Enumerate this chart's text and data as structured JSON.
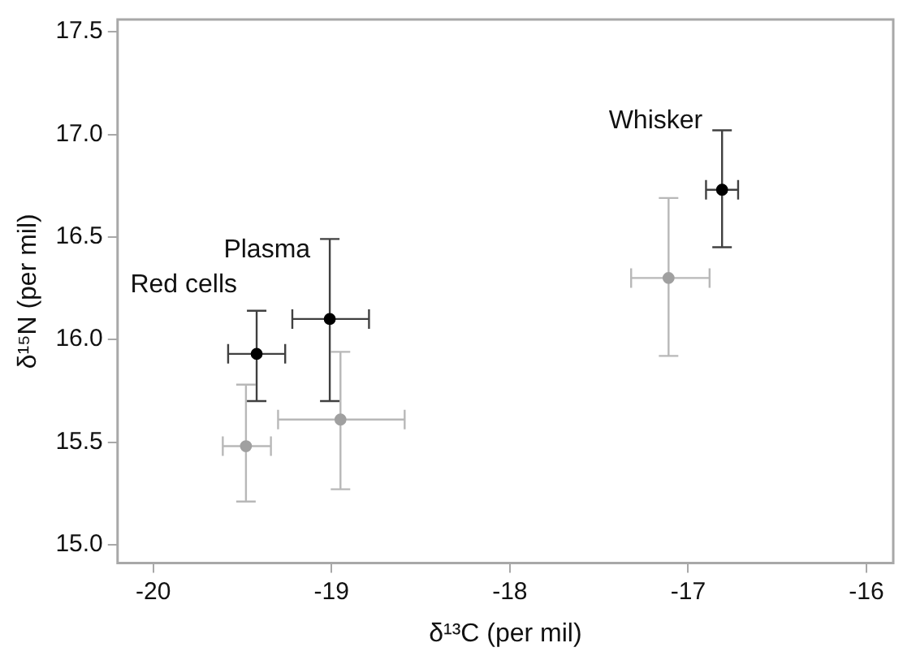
{
  "chart_data": {
    "type": "scatter",
    "xlabel": "δ¹³C (per mil)",
    "ylabel": "δ¹⁵N (per mil)",
    "xlim": [
      -20.2,
      -15.85
    ],
    "xticks": [
      -20,
      -19,
      -18,
      -17,
      -16
    ],
    "ylim": [
      14.91,
      17.56
    ],
    "yticks": [
      {
        "value": 15,
        "label": "15.0"
      },
      {
        "value": 15.5,
        "label": "15.5"
      },
      {
        "value": 16,
        "label": "16.0"
      },
      {
        "value": 16.5,
        "label": "16.5"
      },
      {
        "value": 17,
        "label": "17.0"
      },
      {
        "value": 17.5,
        "label": "17.5"
      }
    ],
    "grid": false,
    "legend": false,
    "marker": "circle",
    "series": [
      {
        "color": "#000000",
        "x": [
          -19.42,
          -19.01,
          -16.81
        ],
        "values": [
          15.93,
          16.1,
          16.73
        ],
        "errors": [
          [
            15.7,
            16.14
          ],
          [
            15.7,
            16.49
          ],
          [
            16.45,
            17.02
          ]
        ],
        "xerrors": [
          [
            -19.58,
            -19.26
          ],
          [
            -19.22,
            -18.79
          ],
          [
            -16.9,
            -16.72
          ]
        ]
      },
      {
        "color": "#a0a0a0",
        "x": [
          -19.48,
          -18.95,
          -17.11
        ],
        "values": [
          15.48,
          15.61,
          16.3
        ],
        "errors": [
          [
            15.21,
            15.78
          ],
          [
            15.27,
            15.94
          ],
          [
            15.92,
            16.69
          ]
        ],
        "xerrors": [
          [
            -19.61,
            -19.34
          ],
          [
            -19.3,
            -18.59
          ],
          [
            -17.32,
            -16.88
          ]
        ]
      }
    ],
    "annotations": [
      {
        "text": "Red cells",
        "x": -19.42,
        "y": 15.93
      },
      {
        "text": "Plasma",
        "x": -19.01,
        "y": 16.1
      },
      {
        "text": "Whisker",
        "x": -16.81,
        "y": 16.73
      }
    ]
  }
}
